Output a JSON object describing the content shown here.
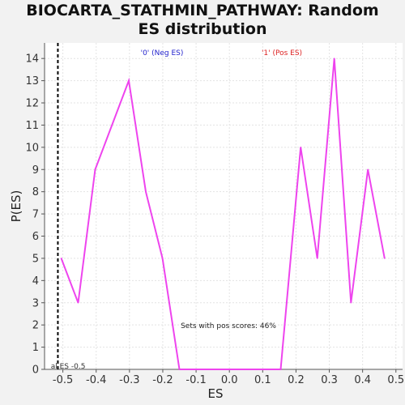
{
  "chart_data": {
    "type": "line",
    "title_line1": "BIOCARTA_STATHMIN_PATHWAY: Random",
    "title_line2": "ES distribution",
    "xlabel": "ES",
    "ylabel": "P(ES)",
    "xlim": [
      -0.555,
      0.52
    ],
    "ylim": [
      0,
      14.7
    ],
    "x_ticks": [
      "-0.5",
      "-0.4",
      "-0.3",
      "-0.2",
      "-0.1",
      "0.0",
      "0.1",
      "0.2",
      "0.3",
      "0.4",
      "0.5"
    ],
    "x_tick_values": [
      -0.5,
      -0.4,
      -0.3,
      -0.2,
      -0.1,
      0.0,
      0.1,
      0.2,
      0.3,
      0.4,
      0.5
    ],
    "y_ticks": [
      0,
      1,
      2,
      3,
      4,
      5,
      6,
      7,
      8,
      9,
      10,
      11,
      12,
      13,
      14
    ],
    "grid": true,
    "series": [
      {
        "color": "#ee44ee",
        "x": [
          -0.505,
          -0.454,
          -0.403,
          -0.302,
          -0.251,
          -0.201,
          -0.15,
          -0.1,
          -0.049,
          0.002,
          0.052,
          0.103,
          0.154,
          0.214,
          0.264,
          0.315,
          0.365,
          0.416,
          0.466
        ],
        "y": [
          5,
          3,
          9,
          13,
          8,
          5,
          0,
          0,
          0,
          0,
          0,
          0,
          0,
          10,
          5,
          14,
          3,
          9,
          5
        ]
      }
    ],
    "vline": {
      "x": -0.515,
      "label": "al ES -0.5",
      "style": "dashed",
      "color": "#000000"
    },
    "annotations": {
      "neg_label": "'0' (Neg ES)",
      "neg_color": "#2222cc",
      "pos_label": "'1' (Pos ES)",
      "pos_color": "#dd2222",
      "pos_scores": "Sets with pos scores: 46%"
    }
  }
}
